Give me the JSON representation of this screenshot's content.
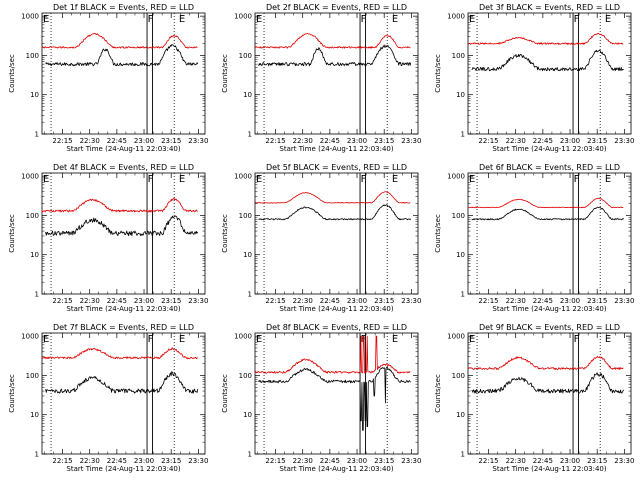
{
  "figure": {
    "x_axis_title": "Start Time (24-Aug-11 22:03:40)",
    "y_axis_title": "Counts/sec",
    "legend_text": "BLACK = Events, RED = LLD",
    "y_ticks": [
      "1",
      "10",
      "100",
      "1000"
    ],
    "x_ticks": [
      "22:15",
      "22:30",
      "22:45",
      "23:00",
      "23:15",
      "23:30"
    ],
    "marker_labels": {
      "start": "E",
      "flare": "F",
      "end": "E"
    },
    "colors": {
      "events": "#000000",
      "lld": "#e00000",
      "frame": "#000000",
      "guide": "#000000"
    }
  },
  "chart_data": [
    {
      "type": "line",
      "title": "Det 1f BLACK = Events, RED = LLD",
      "xlabel": "Start Time (24-Aug-11 22:03:40)",
      "ylabel": "Counts/sec",
      "ylog": true,
      "ylim": [
        1,
        1000
      ],
      "x_ticks": [
        "22:15",
        "22:30",
        "22:45",
        "23:00",
        "23:15",
        "23:30"
      ],
      "markers_minutes": {
        "start_E": 0,
        "dotted_1": 5,
        "F_left": 58,
        "F_right": 61,
        "dotted_2": 73,
        "end_E": 75
      },
      "series": [
        {
          "name": "Events",
          "color": "#000000",
          "start": 2,
          "end": 86,
          "baseline": 60,
          "peaks": [
            [
              30,
              40,
              1.4
            ],
            [
              64,
              80,
              1.9
            ]
          ],
          "noise": 0.1
        },
        {
          "name": "LLD",
          "color": "#e00000",
          "start": 0,
          "end": 86,
          "baseline": 160,
          "peaks": [
            [
              18,
              40,
              1.2
            ],
            [
              66,
              80,
              1.0
            ]
          ],
          "noise": 0.05
        }
      ]
    },
    {
      "type": "line",
      "title": "Det 2f BLACK = Events, RED = LLD",
      "xlabel": "Start Time (24-Aug-11 22:03:40)",
      "ylabel": "Counts/sec",
      "ylog": true,
      "ylim": [
        1,
        1000
      ],
      "x_ticks": [
        "22:15",
        "22:30",
        "22:45",
        "23:00",
        "23:15",
        "23:30"
      ],
      "markers_minutes": {
        "start_E": 0,
        "dotted_1": 5,
        "F_left": 58,
        "F_right": 61,
        "dotted_2": 73,
        "end_E": 75
      },
      "series": [
        {
          "name": "Events",
          "color": "#000000",
          "start": 2,
          "end": 86,
          "baseline": 60,
          "peaks": [
            [
              30,
              40,
              1.4
            ],
            [
              64,
              80,
              1.9
            ]
          ],
          "noise": 0.1
        },
        {
          "name": "LLD",
          "color": "#e00000",
          "start": 0,
          "end": 86,
          "baseline": 160,
          "peaks": [
            [
              18,
              40,
              1.2
            ],
            [
              66,
              80,
              1.0
            ]
          ],
          "noise": 0.05
        }
      ]
    },
    {
      "type": "line",
      "title": "Det 3f BLACK = Events, RED = LLD",
      "xlabel": "Start Time (24-Aug-11 22:03:40)",
      "ylabel": "Counts/sec",
      "ylog": true,
      "ylim": [
        1,
        1000
      ],
      "x_ticks": [
        "22:15",
        "22:30",
        "22:45",
        "23:00",
        "23:15",
        "23:30"
      ],
      "markers_minutes": {
        "start_E": 0,
        "dotted_1": 5,
        "F_left": 58,
        "F_right": 61,
        "dotted_2": 73,
        "end_E": 75
      },
      "series": [
        {
          "name": "Events",
          "color": "#000000",
          "start": 2,
          "end": 86,
          "baseline": 45,
          "peaks": [
            [
              16,
              40,
              1.2
            ],
            [
              64,
              80,
              1.9
            ]
          ],
          "noise": 0.1
        },
        {
          "name": "LLD",
          "color": "#e00000",
          "start": 0,
          "end": 86,
          "baseline": 200,
          "peaks": [
            [
              16,
              40,
              0.4
            ],
            [
              64,
              80,
              0.8
            ]
          ],
          "noise": 0.05
        }
      ]
    },
    {
      "type": "line",
      "title": "Det 4f BLACK = Events, RED = LLD",
      "xlabel": "Start Time (24-Aug-11 22:03:40)",
      "ylabel": "Counts/sec",
      "ylog": true,
      "ylim": [
        1,
        1000
      ],
      "x_ticks": [
        "22:15",
        "22:30",
        "22:45",
        "23:00",
        "23:15",
        "23:30"
      ],
      "markers_minutes": {
        "start_E": 0,
        "dotted_1": 5,
        "F_left": 58,
        "F_right": 61,
        "dotted_2": 73,
        "end_E": 75
      },
      "series": [
        {
          "name": "Events",
          "color": "#000000",
          "start": 2,
          "end": 86,
          "baseline": 35,
          "peaks": [
            [
              16,
              40,
              1.2
            ],
            [
              66,
              80,
              1.6
            ]
          ],
          "noise": 0.14
        },
        {
          "name": "LLD",
          "color": "#e00000",
          "start": 0,
          "end": 86,
          "baseline": 130,
          "peaks": [
            [
              16,
              40,
              0.9
            ],
            [
              66,
              80,
              1.0
            ]
          ],
          "noise": 0.06
        }
      ]
    },
    {
      "type": "line",
      "title": "Det 5f BLACK = Events, RED = LLD",
      "xlabel": "Start Time (24-Aug-11 22:03:40)",
      "ylabel": "Counts/sec",
      "ylog": true,
      "ylim": [
        1,
        1000
      ],
      "x_ticks": [
        "22:15",
        "22:30",
        "22:45",
        "23:00",
        "23:15",
        "23:30"
      ],
      "markers_minutes": {
        "start_E": 0,
        "dotted_1": 5,
        "F_left": 58,
        "F_right": 61,
        "dotted_2": 73,
        "end_E": 75
      },
      "series": [
        {
          "name": "Events",
          "color": "#000000",
          "start": 2,
          "end": 86,
          "baseline": 80,
          "peaks": [
            [
              16,
              40,
              1.0
            ],
            [
              64,
              80,
              1.3
            ]
          ],
          "noise": 0.04
        },
        {
          "name": "LLD",
          "color": "#e00000",
          "start": 0,
          "end": 86,
          "baseline": 210,
          "peaks": [
            [
              16,
              40,
              0.8
            ],
            [
              64,
              80,
              0.9
            ]
          ],
          "noise": 0.02
        }
      ]
    },
    {
      "type": "line",
      "title": "Det 6f BLACK = Events, RED = LLD",
      "xlabel": "Start Time (24-Aug-11 22:03:40)",
      "ylabel": "Counts/sec",
      "ylog": true,
      "ylim": [
        1,
        1000
      ],
      "x_ticks": [
        "22:15",
        "22:30",
        "22:45",
        "23:00",
        "23:15",
        "23:30"
      ],
      "markers_minutes": {
        "start_E": 0,
        "dotted_1": 5,
        "F_left": 58,
        "F_right": 61,
        "dotted_2": 73,
        "end_E": 75
      },
      "series": [
        {
          "name": "Events",
          "color": "#000000",
          "start": 2,
          "end": 86,
          "baseline": 80,
          "peaks": [
            [
              16,
              40,
              0.8
            ],
            [
              64,
              80,
              1.0
            ]
          ],
          "noise": 0.04
        },
        {
          "name": "LLD",
          "color": "#e00000",
          "start": 0,
          "end": 86,
          "baseline": 160,
          "peaks": [
            [
              16,
              40,
              0.6
            ],
            [
              64,
              80,
              0.7
            ]
          ],
          "noise": 0.02
        }
      ]
    },
    {
      "type": "line",
      "title": "Det 7f BLACK = Events, RED = LLD",
      "xlabel": "Start Time (24-Aug-11 22:03:40)",
      "ylabel": "Counts/sec",
      "ylog": true,
      "ylim": [
        1,
        1000
      ],
      "x_ticks": [
        "22:15",
        "22:30",
        "22:45",
        "23:00",
        "23:15",
        "23:30"
      ],
      "markers_minutes": {
        "start_E": 0,
        "dotted_1": 5,
        "F_left": 58,
        "F_right": 61,
        "dotted_2": 73,
        "end_E": 75
      },
      "series": [
        {
          "name": "Events",
          "color": "#000000",
          "start": 2,
          "end": 86,
          "baseline": 40,
          "peaks": [
            [
              16,
              40,
              1.2
            ],
            [
              64,
              80,
              1.8
            ]
          ],
          "noise": 0.13
        },
        {
          "name": "LLD",
          "color": "#e00000",
          "start": 0,
          "end": 86,
          "baseline": 280,
          "peaks": [
            [
              16,
              40,
              0.7
            ],
            [
              64,
              80,
              0.7
            ]
          ],
          "noise": 0.06
        }
      ]
    },
    {
      "type": "line",
      "title": "Det 8f BLACK = Events, RED = LLD",
      "xlabel": "Start Time (24-Aug-11 22:03:40)",
      "ylabel": "Counts/sec",
      "ylog": true,
      "ylim": [
        1,
        1000
      ],
      "x_ticks": [
        "22:15",
        "22:30",
        "22:45",
        "23:00",
        "23:15",
        "23:30"
      ],
      "markers_minutes": {
        "start_E": 0,
        "dotted_1": 5,
        "F_left": 58,
        "F_right": 61,
        "dotted_2": 73,
        "end_E": 75
      },
      "series": [
        {
          "name": "Events",
          "color": "#000000",
          "start": 2,
          "end": 86,
          "baseline": 70,
          "peaks": [
            [
              16,
              40,
              1.0
            ],
            [
              64,
              80,
              1.3
            ]
          ],
          "noise": 0.08,
          "dips": [
            [
              58.5,
              7
            ],
            [
              59.5,
              4
            ],
            [
              61,
              7
            ],
            [
              62,
              5
            ],
            [
              66,
              30
            ],
            [
              72,
              20
            ]
          ]
        },
        {
          "name": "LLD",
          "color": "#e00000",
          "start": 0,
          "end": 86,
          "baseline": 120,
          "peaks": [
            [
              16,
              40,
              1.1
            ],
            [
              64,
              80,
              0.6
            ]
          ],
          "noise": 0.06,
          "spikes": [
            [
              58.5,
              1000
            ],
            [
              60,
              1000
            ],
            [
              62,
              1000
            ],
            [
              67,
              1000
            ]
          ]
        }
      ]
    },
    {
      "type": "line",
      "title": "Det 9f BLACK = Events, RED = LLD",
      "xlabel": "Start Time (24-Aug-11 22:03:40)",
      "ylabel": "Counts/sec",
      "ylog": true,
      "ylim": [
        1,
        1000
      ],
      "x_ticks": [
        "22:15",
        "22:30",
        "22:45",
        "23:00",
        "23:15",
        "23:30"
      ],
      "markers_minutes": {
        "start_E": 0,
        "dotted_1": 5,
        "F_left": 58,
        "F_right": 61,
        "dotted_2": 73,
        "end_E": 75
      },
      "series": [
        {
          "name": "Events",
          "color": "#000000",
          "start": 2,
          "end": 86,
          "baseline": 40,
          "peaks": [
            [
              16,
              40,
              1.1
            ],
            [
              64,
              80,
              1.7
            ]
          ],
          "noise": 0.12
        },
        {
          "name": "LLD",
          "color": "#e00000",
          "start": 0,
          "end": 86,
          "baseline": 150,
          "peaks": [
            [
              16,
              40,
              0.9
            ],
            [
              64,
              80,
              1.0
            ]
          ],
          "noise": 0.06
        }
      ]
    }
  ]
}
